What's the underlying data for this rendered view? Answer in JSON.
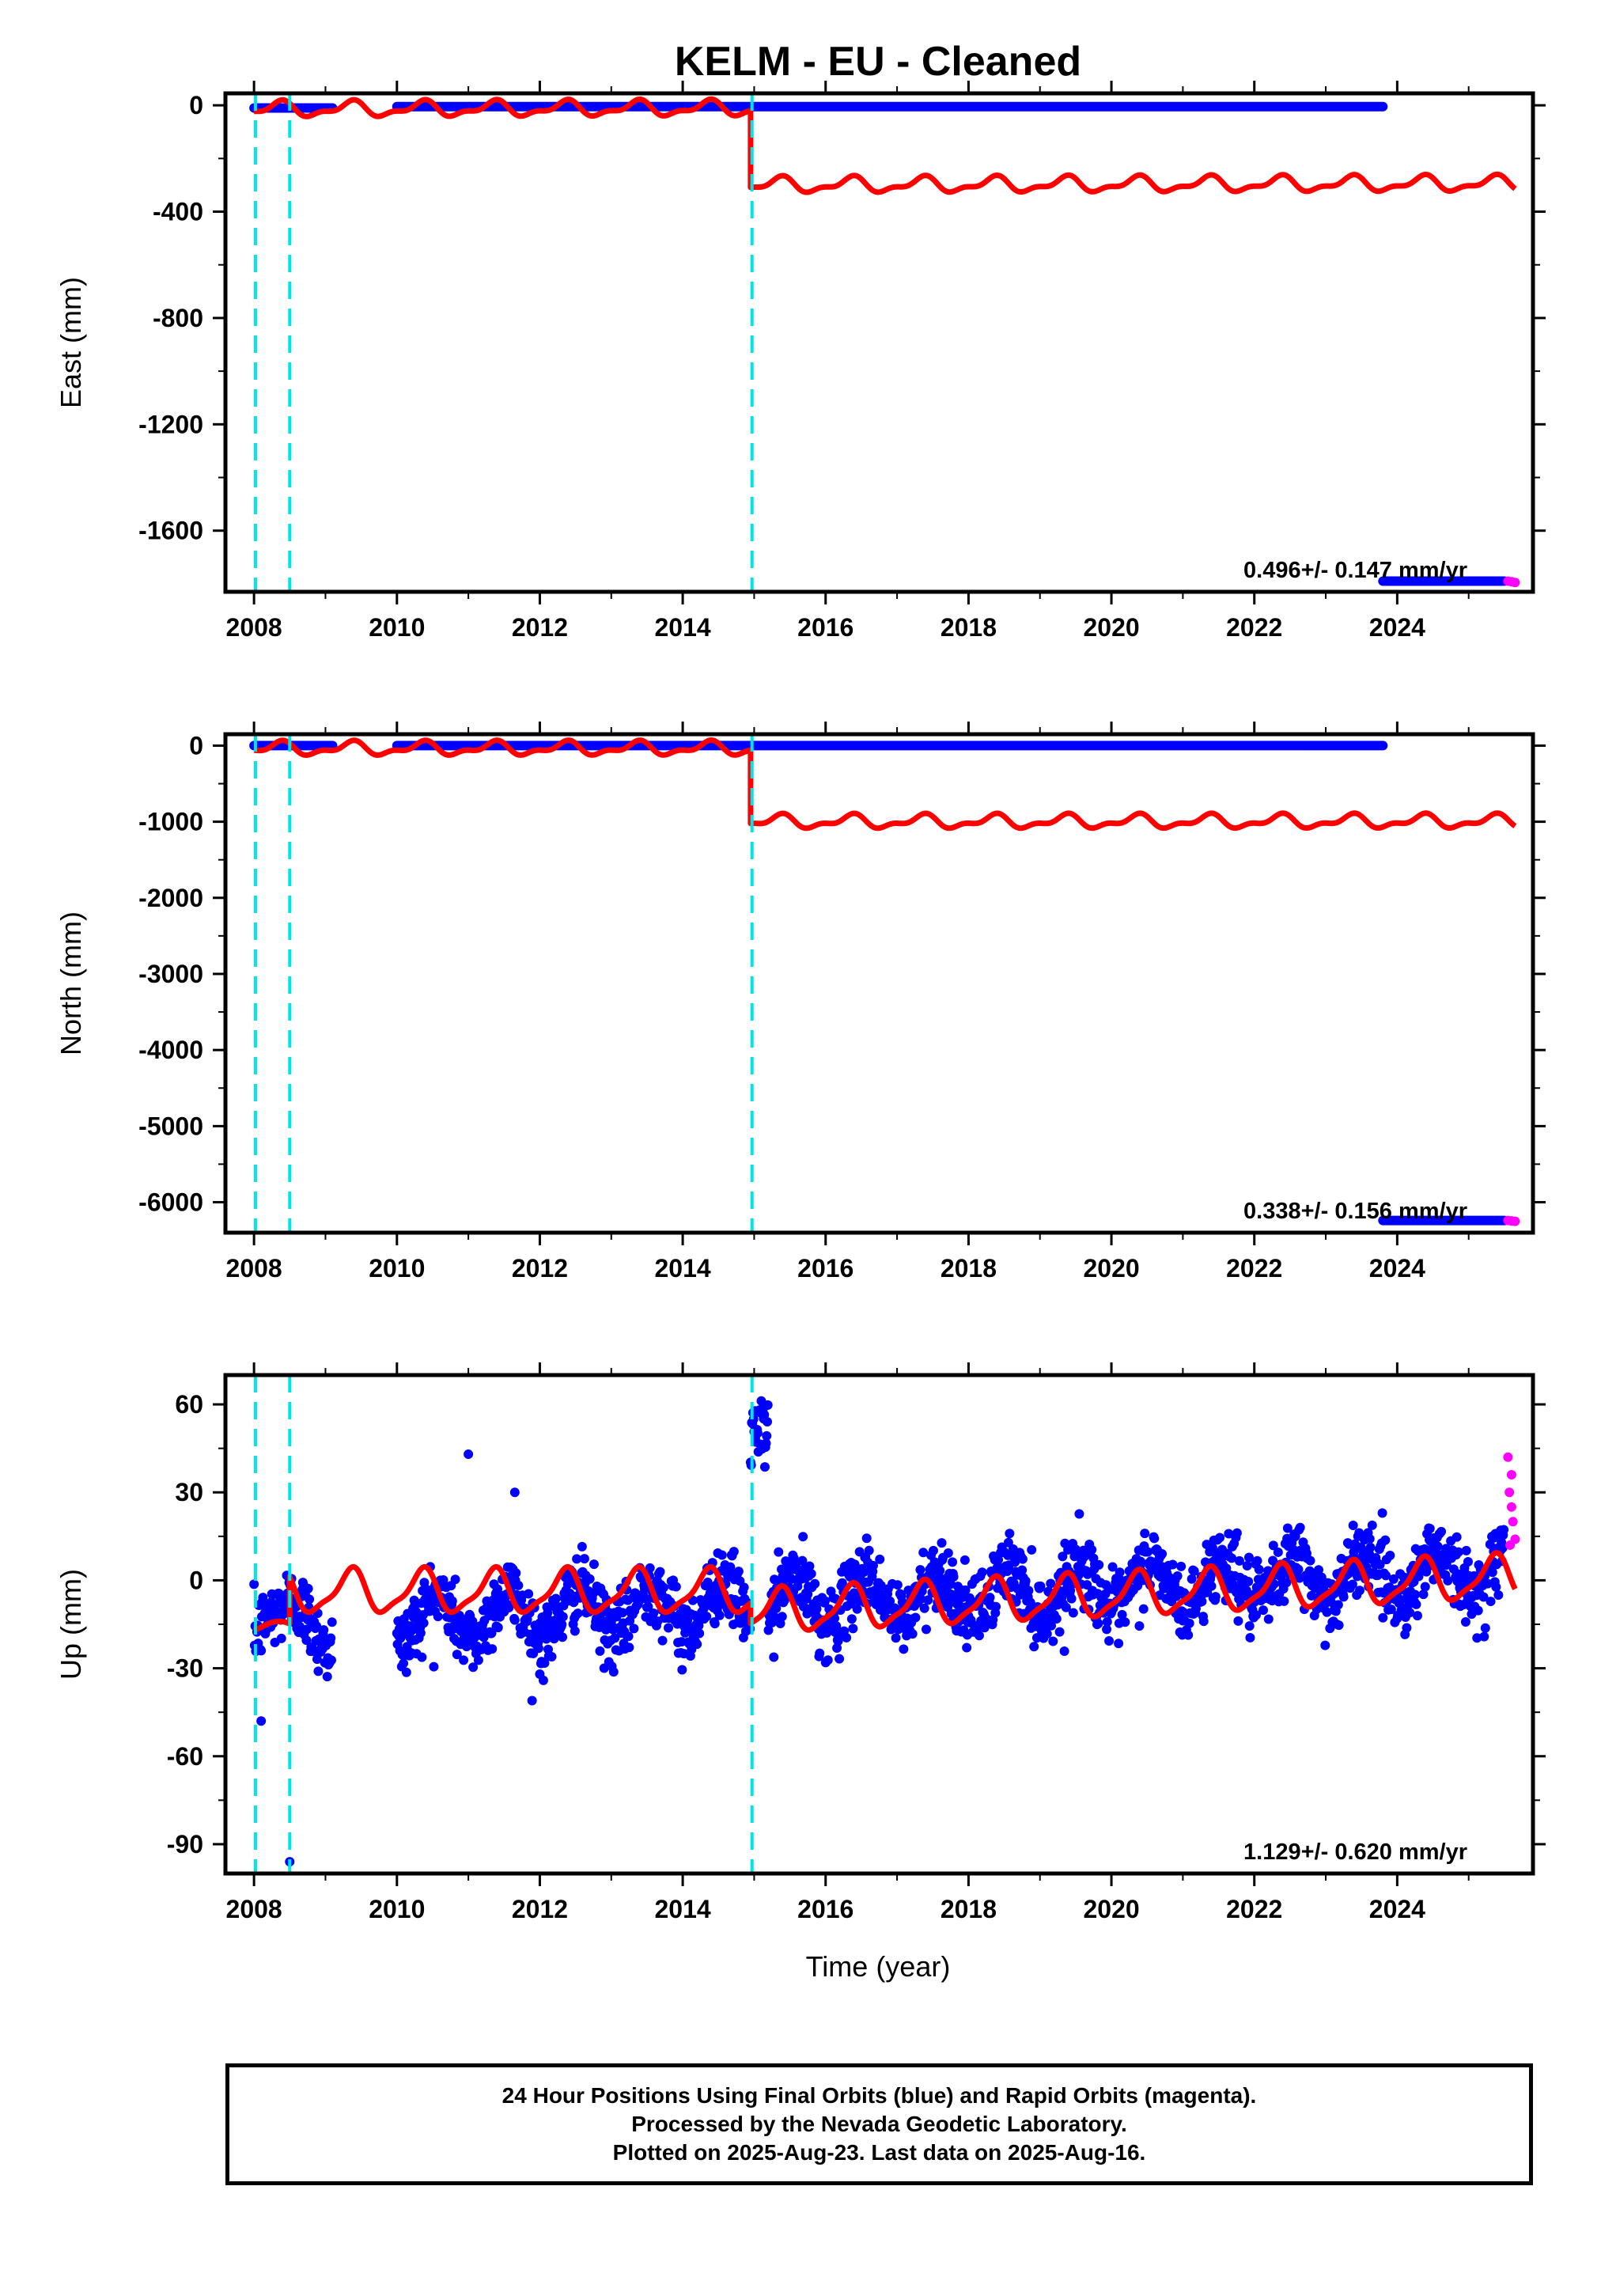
{
  "title": "KELM  - EU - Cleaned",
  "colors": {
    "final_orbits": "#0000ff",
    "rapid_orbits": "#ff00ff",
    "model": "#ff0000",
    "offsets": "#00e5e5",
    "frame": "#000000"
  },
  "x_axis": {
    "label": "Time (year)",
    "range": [
      2007.6,
      2025.9
    ],
    "ticks": [
      "2008",
      "2010",
      "2012",
      "2014",
      "2016",
      "2018",
      "2020",
      "2022",
      "2024"
    ],
    "tick_values": [
      2008,
      2010,
      2012,
      2014,
      2016,
      2018,
      2020,
      2022,
      2024
    ]
  },
  "offset_epochs": [
    2008.02,
    2008.5,
    2014.97
  ],
  "panels": [
    {
      "id": "east",
      "ylabel": "East (mm)",
      "ylim": [
        -1830,
        45
      ],
      "ticks": [
        "0",
        "-400",
        "-800",
        "-1200",
        "-1600"
      ],
      "tick_values": [
        0,
        -400,
        -800,
        -1200,
        -1600
      ],
      "rate": "0.496+/- 0.147 mm/yr",
      "final_segments": [
        {
          "x0": 2008.0,
          "x1": 2009.1,
          "y": -10
        },
        {
          "x0": 2010.0,
          "x1": 2023.8,
          "y": -5
        },
        {
          "x0": 2023.8,
          "x1": 2025.5,
          "y": -1790
        }
      ],
      "rapid_points": [
        [
          2025.55,
          -1790
        ],
        [
          2025.6,
          -1792
        ],
        [
          2025.65,
          -1795
        ]
      ],
      "model": {
        "segments": [
          {
            "x0": 2008.0,
            "x1": 2014.95,
            "offset": -15,
            "trend": 0.5,
            "annual_amp": 25,
            "semiannual_amp": 12
          },
          {
            "x0": 2014.95,
            "x1": 2025.65,
            "offset": -300,
            "trend": 0.5,
            "annual_amp": 25,
            "semiannual_amp": 12
          }
        ]
      }
    },
    {
      "id": "north",
      "ylabel": "North (mm)",
      "ylim": [
        -6400,
        150
      ],
      "ticks": [
        "0",
        "-1000",
        "-2000",
        "-3000",
        "-4000",
        "-5000",
        "-6000"
      ],
      "tick_values": [
        0,
        -1000,
        -2000,
        -3000,
        -4000,
        -5000,
        -6000
      ],
      "rate": "0.338+/- 0.156 mm/yr",
      "final_segments": [
        {
          "x0": 2008.0,
          "x1": 2009.1,
          "y": 0
        },
        {
          "x0": 2010.0,
          "x1": 2023.8,
          "y": 0
        },
        {
          "x0": 2023.8,
          "x1": 2025.5,
          "y": -6240
        }
      ],
      "rapid_points": [
        [
          2025.55,
          -6240
        ],
        [
          2025.6,
          -6245
        ],
        [
          2025.65,
          -6250
        ]
      ],
      "model": {
        "segments": [
          {
            "x0": 2008.0,
            "x1": 2014.95,
            "offset": -40,
            "trend": 0.34,
            "annual_amp": 75,
            "semiannual_amp": 40
          },
          {
            "x0": 2014.95,
            "x1": 2025.65,
            "offset": -1000,
            "trend": 0.34,
            "annual_amp": 75,
            "semiannual_amp": 40
          }
        ]
      }
    },
    {
      "id": "up",
      "ylabel": "Up (mm)",
      "ylim": [
        -100,
        70
      ],
      "ticks": [
        "60",
        "30",
        "0",
        "-30",
        "-60",
        "-90"
      ],
      "tick_values": [
        60,
        30,
        0,
        -30,
        -60,
        -90
      ],
      "rate": "1.129+/- 0.620 mm/yr",
      "scatter": {
        "gaps": [
          [
            2009.1,
            2010.0
          ]
        ],
        "start": 2008.0,
        "end": 2025.5,
        "annual_amp": 8,
        "noise": 6,
        "trend": 1.13,
        "offset": -8,
        "jump_window": [
          2014.95,
          2015.2
        ],
        "jump_level": 50,
        "outliers": [
          [
            2011.0,
            43
          ],
          [
            2011.65,
            30
          ],
          [
            2008.5,
            -96
          ],
          [
            2008.1,
            -48
          ],
          [
            2012.0,
            -32
          ]
        ]
      },
      "rapid_points": [
        [
          2025.55,
          42
        ],
        [
          2025.57,
          30
        ],
        [
          2025.6,
          25
        ],
        [
          2025.62,
          20
        ],
        [
          2025.65,
          14
        ],
        [
          2025.6,
          36
        ],
        [
          2025.58,
          12
        ]
      ],
      "model": {
        "segments": [
          {
            "x0": 2008.0,
            "x1": 2008.5,
            "offset": -16,
            "trend": 0,
            "annual_amp": 2,
            "semiannual_amp": 0
          },
          {
            "x0": 2008.5,
            "x1": 2014.95,
            "offset": -4,
            "trend": 0,
            "annual_amp": 7,
            "semiannual_amp": 2
          },
          {
            "x0": 2014.95,
            "x1": 2025.65,
            "offset": -11,
            "trend": 1.13,
            "annual_amp": 7,
            "semiannual_amp": 2
          }
        ]
      }
    }
  ],
  "footer": {
    "line1": "24 Hour Positions Using Final Orbits (blue) and Rapid Orbits (magenta).",
    "line2": "Processed by the Nevada Geodetic Laboratory.",
    "line3": "Plotted on 2025-Aug-23. Last data on 2025-Aug-16."
  }
}
